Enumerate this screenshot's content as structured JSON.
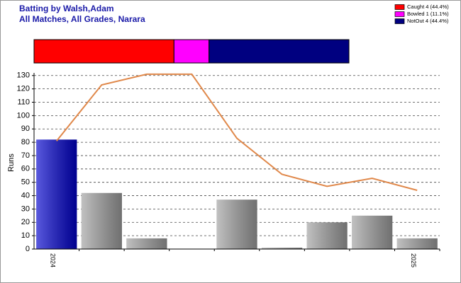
{
  "chart_data": [
    {
      "type": "proportion",
      "title": "Batting by Walsh,Adam",
      "subtitle": "All Matches, All Grades, Narara",
      "series": [
        {
          "name": "Caught 4 (44.4%)",
          "color": "#ff0000",
          "values": [
            4
          ]
        },
        {
          "name": "Bowled 1 (11.1%)",
          "color": "#ff00ff",
          "values": [
            1
          ]
        },
        {
          "name": "NotOut 4 (44.4%)",
          "color": "#000080",
          "values": [
            4
          ]
        }
      ],
      "legend": "top-right"
    },
    {
      "type": "bar",
      "y_label": "Runs",
      "categories": [
        "2024",
        null,
        null,
        null,
        null,
        null,
        null,
        null,
        "2025"
      ],
      "series": [
        {
          "type": "bar",
          "values": [
            82,
            42,
            8,
            0,
            37,
            1,
            20,
            25,
            8
          ],
          "colors": [
            "#0000cc",
            "#a0a0a0",
            "#a0a0a0",
            "#a0a0a0",
            "#a0a0a0",
            "#a0a0a0",
            "#a0a0a0",
            "#a0a0a0",
            "#a0a0a0"
          ]
        },
        {
          "type": "line",
          "color": "#e0884a",
          "values": [
            81,
            123,
            131,
            131,
            83,
            56,
            47,
            53,
            44
          ]
        }
      ],
      "ylim": [
        0,
        132
      ],
      "yticks": [
        0,
        10,
        20,
        30,
        40,
        50,
        60,
        70,
        80,
        90,
        100,
        110,
        120,
        130
      ],
      "grid": true
    }
  ]
}
